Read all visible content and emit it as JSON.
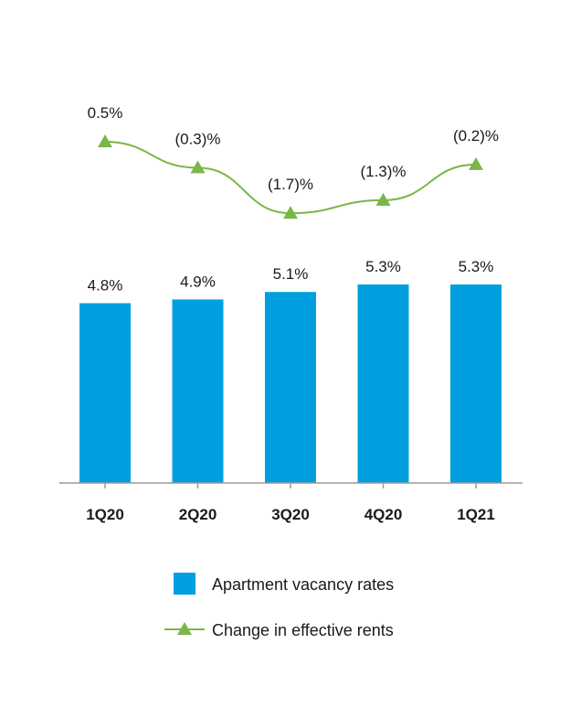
{
  "chart_data": {
    "type": "bar",
    "categories": [
      "1Q20",
      "2Q20",
      "3Q20",
      "4Q20",
      "1Q21"
    ],
    "series": [
      {
        "name": "Apartment vacancy rates",
        "type": "bar",
        "values": [
          4.8,
          4.9,
          5.1,
          5.3,
          5.3
        ],
        "labels": [
          "4.8%",
          "4.9%",
          "5.1%",
          "5.3%",
          "5.3%"
        ],
        "color": "#00a0e0"
      },
      {
        "name": "Change in effective rents",
        "type": "line",
        "values": [
          0.5,
          -0.3,
          -1.7,
          -1.3,
          -0.2
        ],
        "labels": [
          "0.5%",
          "(0.3)%",
          "(1.7)%",
          "(1.3)%",
          "(0.2)%"
        ],
        "color": "#7ab648",
        "marker": "triangle"
      }
    ],
    "legend": "bottom",
    "grid": false
  }
}
